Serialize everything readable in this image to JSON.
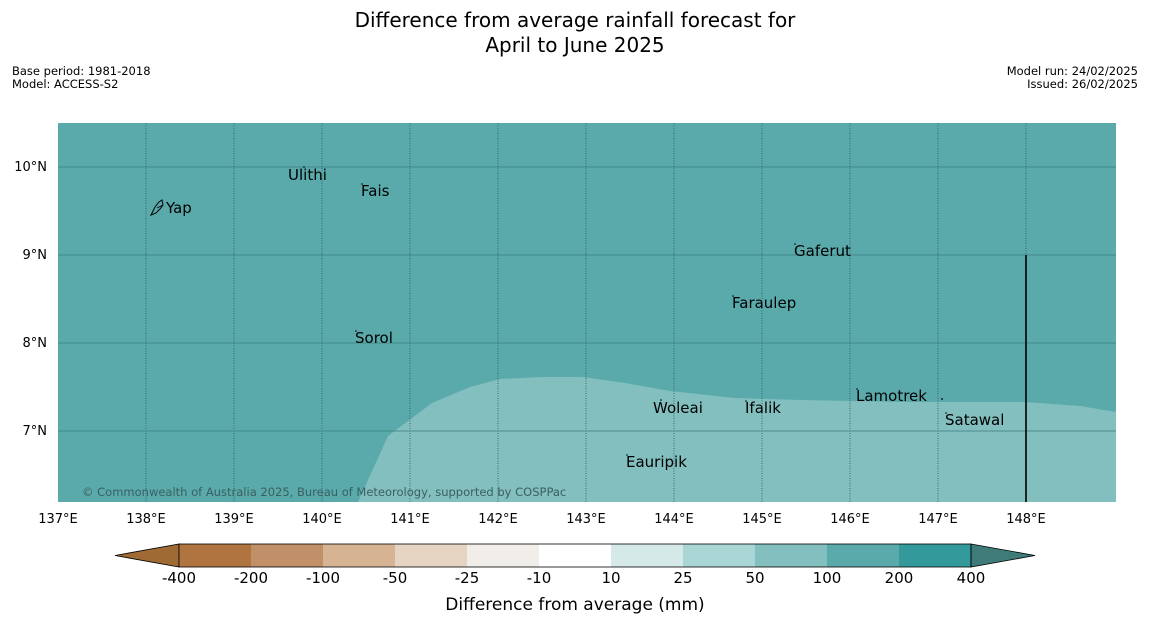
{
  "title_line1": "Difference from average rainfall forecast for",
  "title_line2": "April to June 2025",
  "base_period": "Base period: 1981-2018",
  "model": "Model: ACCESS-S2",
  "model_run": "Model run: 24/02/2025",
  "issued": "Issued: 26/02/2025",
  "copyright": "© Commonwealth of Australia 2025, Bureau of Meteorology, supported by COSPPac",
  "lat_labels": [
    "10°N",
    "9°N",
    "8°N",
    "7°N"
  ],
  "lon_labels": [
    "137°E",
    "138°E",
    "139°E",
    "140°E",
    "141°E",
    "142°E",
    "143°E",
    "144°E",
    "145°E",
    "146°E",
    "147°E",
    "148°E"
  ],
  "places": [
    {
      "name": "Yap"
    },
    {
      "name": "Ulithi"
    },
    {
      "name": "Fais"
    },
    {
      "name": "Gaferut"
    },
    {
      "name": "Faraulep"
    },
    {
      "name": "Sorol"
    },
    {
      "name": "Lamotrek"
    },
    {
      "name": "Woleai"
    },
    {
      "name": "Ifalik"
    },
    {
      "name": "Satawal"
    },
    {
      "name": "Eauripik"
    }
  ],
  "colorbar": {
    "label": "Difference from average (mm)",
    "tick_labels": [
      "-400",
      "-200",
      "-100",
      "-50",
      "-25",
      "-10",
      "10",
      "25",
      "50",
      "100",
      "200",
      "400"
    ],
    "colors": [
      "#a06a35",
      "#b07440",
      "#c29068",
      "#d6b393",
      "#e6d4c2",
      "#f1eeea",
      "#ffffff",
      "#d4e9e8",
      "#a9d5d4",
      "#83bfbe",
      "#5aaaac",
      "#34999a",
      "#3e7b79"
    ]
  },
  "map_colors": {
    "band_100_200": "#5aaaac",
    "band_50_100": "#83bfbe"
  }
}
